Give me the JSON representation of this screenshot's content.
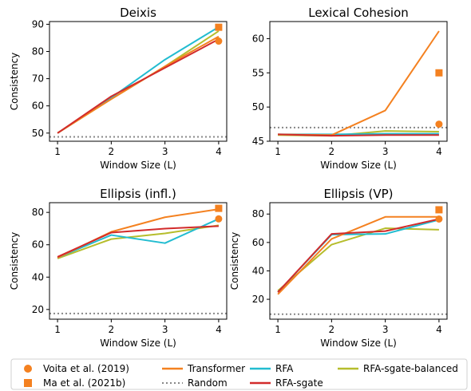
{
  "colors": {
    "transformer": "#f48120",
    "rfa": "#22bcd0",
    "rfa_sgate": "#d22b2b",
    "rfa_sgate_balanced": "#b6bd2c",
    "random": "#888888",
    "voita": "#f48120",
    "ma": "#f48120"
  },
  "chart_data": [
    {
      "type": "line",
      "title": "Deixis",
      "xlabel": "Window Size (L)",
      "ylabel": "Consistency",
      "x": [
        1,
        2,
        3,
        4
      ],
      "xticks": [
        "1",
        "2",
        "3",
        "4"
      ],
      "yticks": [
        50,
        60,
        70,
        80,
        90
      ],
      "ylim": [
        47,
        91
      ],
      "random": 48.6,
      "series": [
        {
          "name": "Transformer",
          "values": [
            50,
            62.5,
            74.5,
            85.5
          ]
        },
        {
          "name": "RFA",
          "values": [
            50,
            63,
            77,
            89
          ]
        },
        {
          "name": "RFA-sgate",
          "values": [
            50,
            63.5,
            74,
            84.5
          ]
        },
        {
          "name": "RFA-sgate-balanced",
          "values": [
            50,
            62.5,
            74.5,
            87.5
          ]
        }
      ],
      "points": [
        {
          "name": "Voita et al. (2019)",
          "x": 4,
          "y": 83.8,
          "marker": "circle"
        },
        {
          "name": "Ma et al. (2021b)",
          "x": 4,
          "y": 88.9,
          "marker": "square"
        }
      ]
    },
    {
      "type": "line",
      "title": "Lexical Cohesion",
      "xlabel": "Window Size (L)",
      "ylabel": "",
      "x": [
        1,
        2,
        3,
        4
      ],
      "xticks": [
        "1",
        "2",
        "3",
        "4"
      ],
      "yticks": [
        45,
        50,
        55,
        60
      ],
      "ylim": [
        45,
        62.5
      ],
      "random": 47,
      "series": [
        {
          "name": "Transformer",
          "values": [
            46,
            45.9,
            49.5,
            61.1
          ]
        },
        {
          "name": "RFA",
          "values": [
            46,
            46,
            46.1,
            46.1
          ]
        },
        {
          "name": "RFA-sgate",
          "values": [
            46,
            45.8,
            45.9,
            45.9
          ]
        },
        {
          "name": "RFA-sgate-balanced",
          "values": [
            45.9,
            45.8,
            46.5,
            46.4
          ]
        }
      ],
      "points": [
        {
          "name": "Voita et al. (2019)",
          "x": 4,
          "y": 47.5,
          "marker": "circle"
        },
        {
          "name": "Ma et al. (2021b)",
          "x": 4,
          "y": 55,
          "marker": "square"
        }
      ]
    },
    {
      "type": "line",
      "title": "Ellipsis (infl.)",
      "xlabel": "Window Size (L)",
      "ylabel": "Consistency",
      "x": [
        1,
        2,
        3,
        4
      ],
      "xticks": [
        "1",
        "2",
        "3",
        "4"
      ],
      "yticks": [
        20,
        40,
        60,
        80
      ],
      "ylim": [
        14,
        86
      ],
      "random": 17.5,
      "series": [
        {
          "name": "Transformer",
          "values": [
            52,
            68,
            77,
            82
          ]
        },
        {
          "name": "RFA",
          "values": [
            52,
            66,
            61,
            76
          ]
        },
        {
          "name": "RFA-sgate",
          "values": [
            52.5,
            67.5,
            70,
            71.5
          ]
        },
        {
          "name": "RFA-sgate-balanced",
          "values": [
            51.5,
            63.5,
            67,
            72
          ]
        }
      ],
      "points": [
        {
          "name": "Voita et al. (2019)",
          "x": 4,
          "y": 76,
          "marker": "circle"
        },
        {
          "name": "Ma et al. (2021b)",
          "x": 4,
          "y": 82.5,
          "marker": "square"
        }
      ]
    },
    {
      "type": "line",
      "title": "Ellipsis (VP)",
      "xlabel": "Window Size (L)",
      "ylabel": "Consistency",
      "x": [
        1,
        2,
        3,
        4
      ],
      "xticks": [
        "1",
        "2",
        "3",
        "4"
      ],
      "yticks": [
        20,
        40,
        60,
        80
      ],
      "ylim": [
        6,
        88
      ],
      "random": 9.5,
      "series": [
        {
          "name": "Transformer",
          "values": [
            23.5,
            62.5,
            78,
            78
          ]
        },
        {
          "name": "RFA",
          "values": [
            25,
            65.5,
            66,
            76
          ]
        },
        {
          "name": "RFA-sgate",
          "values": [
            25,
            66,
            68,
            76.5
          ]
        },
        {
          "name": "RFA-sgate-balanced",
          "values": [
            26,
            58.5,
            70,
            69
          ]
        }
      ],
      "points": [
        {
          "name": "Voita et al. (2019)",
          "x": 4,
          "y": 76.5,
          "marker": "circle"
        },
        {
          "name": "Ma et al. (2021b)",
          "x": 4,
          "y": 83,
          "marker": "square"
        }
      ]
    }
  ],
  "legend": {
    "placement": "bottom",
    "entries": [
      {
        "label": "Voita et al. (2019)",
        "kind": "circle",
        "color_key": "voita"
      },
      {
        "label": "Ma et al. (2021b)",
        "kind": "square",
        "color_key": "ma"
      },
      {
        "label": "Transformer",
        "kind": "line",
        "color_key": "transformer"
      },
      {
        "label": "Random",
        "kind": "dotted",
        "color_key": "random"
      },
      {
        "label": "RFA",
        "kind": "line",
        "color_key": "rfa"
      },
      {
        "label": "RFA-sgate",
        "kind": "line",
        "color_key": "rfa_sgate"
      },
      {
        "label": "RFA-sgate-balanced",
        "kind": "line",
        "color_key": "rfa_sgate_balanced"
      }
    ]
  }
}
